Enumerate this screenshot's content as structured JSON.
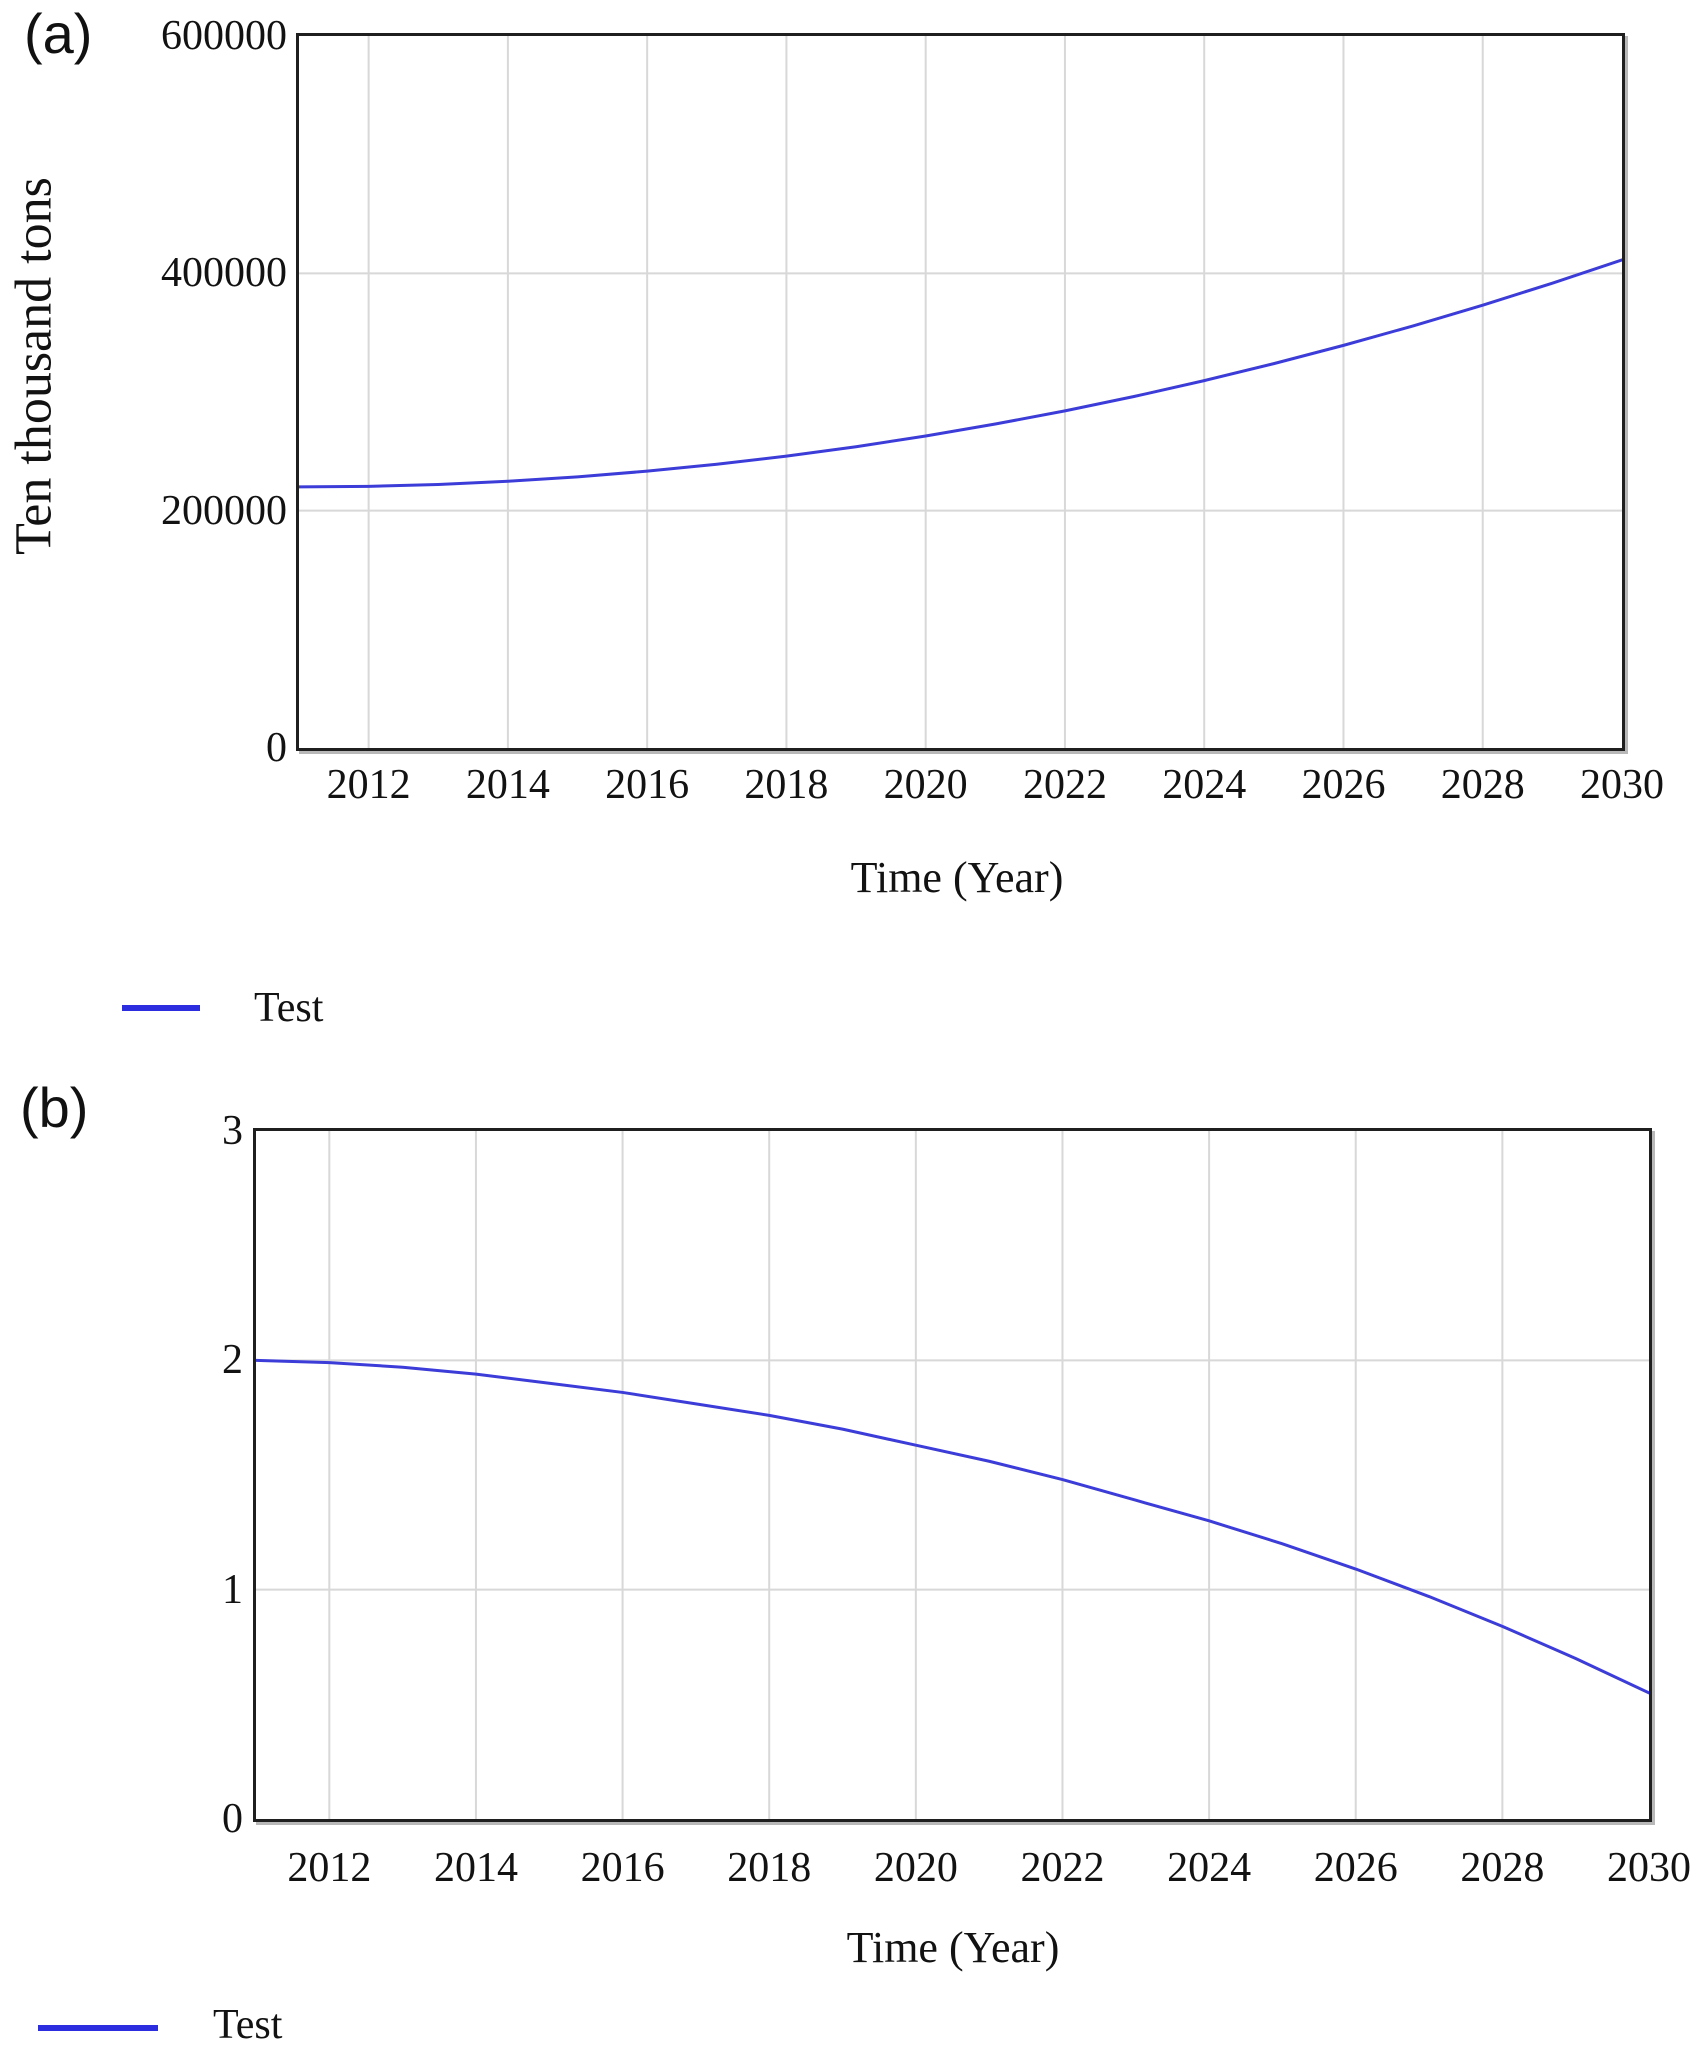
{
  "accent_colors": {
    "series_line": "#3c3cd9",
    "legend_line": "#2d2de0",
    "gridline": "#d8d8d8",
    "axis_border": "#1f1f1f",
    "text": "#121212"
  },
  "panels": [
    {
      "label": "(a)",
      "y_axis_label": "Ten thousand tons",
      "x_axis_label": "Time (Year)",
      "legend_label": "Test"
    },
    {
      "label": "(b)",
      "y_axis_label": "",
      "x_axis_label": "Time (Year)",
      "legend_label": "Test"
    }
  ],
  "chart_data": [
    {
      "type": "line",
      "title": "(a)",
      "xlabel": "Time (Year)",
      "ylabel": "Ten thousand tons",
      "x": [
        2011,
        2012,
        2013,
        2014,
        2015,
        2016,
        2017,
        2018,
        2019,
        2020,
        2021,
        2022,
        2023,
        2024,
        2025,
        2026,
        2027,
        2028,
        2029,
        2030
      ],
      "series": [
        {
          "name": "Test",
          "values": [
            220000,
            220500,
            222100,
            224800,
            228500,
            233300,
            239100,
            246000,
            253900,
            262900,
            273000,
            284100,
            296300,
            309600,
            323900,
            339300,
            355700,
            373200,
            391700,
            411300
          ]
        }
      ],
      "xlim": [
        2011,
        2030
      ],
      "ylim": [
        0,
        600000
      ],
      "x_ticks": [
        2012,
        2014,
        2016,
        2018,
        2020,
        2022,
        2024,
        2026,
        2028,
        2030
      ],
      "y_ticks": [
        0,
        200000,
        400000,
        600000
      ],
      "grid_x": [
        2012,
        2014,
        2016,
        2018,
        2020,
        2022,
        2024,
        2026,
        2028
      ],
      "grid_y": [
        200000,
        400000
      ],
      "grid": true,
      "legend_position": "below-left",
      "legend_entries": [
        "Test"
      ]
    },
    {
      "type": "line",
      "title": "(b)",
      "xlabel": "Time (Year)",
      "ylabel": "",
      "x": [
        2011,
        2012,
        2013,
        2014,
        2015,
        2016,
        2017,
        2018,
        2019,
        2020,
        2021,
        2022,
        2023,
        2024,
        2025,
        2026,
        2027,
        2028,
        2029,
        2030
      ],
      "series": [
        {
          "name": "Test",
          "values": [
            2.0,
            1.99,
            1.97,
            1.94,
            1.9,
            1.86,
            1.81,
            1.76,
            1.7,
            1.63,
            1.56,
            1.48,
            1.39,
            1.3,
            1.2,
            1.09,
            0.97,
            0.84,
            0.7,
            0.55
          ]
        }
      ],
      "xlim": [
        2011,
        2030
      ],
      "ylim": [
        0,
        3
      ],
      "x_ticks": [
        2012,
        2014,
        2016,
        2018,
        2020,
        2022,
        2024,
        2026,
        2028,
        2030
      ],
      "y_ticks": [
        0,
        1,
        2,
        3
      ],
      "grid_x": [
        2012,
        2014,
        2016,
        2018,
        2020,
        2022,
        2024,
        2026,
        2028
      ],
      "grid_y": [
        1,
        2
      ],
      "grid": true,
      "legend_position": "below-left",
      "legend_entries": [
        "Test"
      ]
    }
  ]
}
